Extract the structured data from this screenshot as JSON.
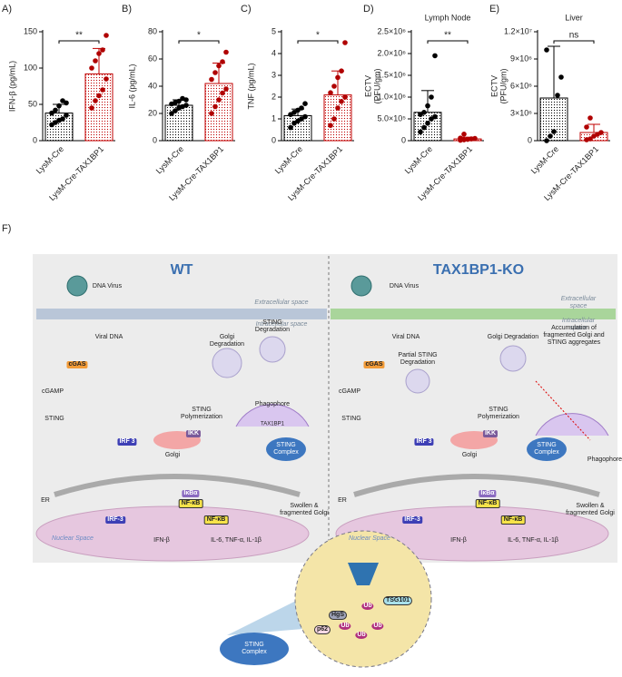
{
  "chart_data": [
    {
      "type": "bar",
      "label": "A)",
      "ylabel": [
        "IFN-β  (pg/mL)"
      ],
      "categories": [
        "LysM-Cre",
        "LysM-Cre-TAX1BP1"
      ],
      "colors": [
        "#000000",
        "#c00000"
      ],
      "values": [
        38,
        92
      ],
      "errors": [
        12,
        35
      ],
      "points": [
        [
          22,
          25,
          28,
          30,
          35,
          38,
          42,
          48,
          55,
          52
        ],
        [
          45,
          55,
          62,
          70,
          85,
          100,
          110,
          120,
          125,
          145
        ]
      ],
      "significance": "**",
      "ylim": [
        0,
        150
      ],
      "yticks": [
        0,
        50,
        100,
        150
      ]
    },
    {
      "type": "bar",
      "label": "B)",
      "ylabel": [
        "IL-6  (pg/mL)"
      ],
      "categories": [
        "LysM-Cre",
        "LysM-Cre-TAX1BP1"
      ],
      "colors": [
        "#000000",
        "#c00000"
      ],
      "values": [
        26,
        42
      ],
      "errors": [
        4,
        15
      ],
      "points": [
        [
          20,
          22,
          24,
          25,
          26,
          27,
          28,
          29,
          31,
          30
        ],
        [
          20,
          25,
          30,
          35,
          38,
          45,
          50,
          55,
          58,
          65
        ]
      ],
      "significance": "*",
      "ylim": [
        0,
        80
      ],
      "yticks": [
        0,
        20,
        40,
        60,
        80
      ]
    },
    {
      "type": "bar",
      "label": "C)",
      "ylabel": [
        "TNF  (pg/mL)"
      ],
      "categories": [
        "LysM-Cre",
        "LysM-Cre-TAX1BP1"
      ],
      "colors": [
        "#000000",
        "#c00000"
      ],
      "values": [
        1.15,
        2.1
      ],
      "errors": [
        0.3,
        1.1
      ],
      "points": [
        [
          0.6,
          0.8,
          0.9,
          1.0,
          1.1,
          1.2,
          1.3,
          1.4,
          1.5,
          1.7
        ],
        [
          0.7,
          1.0,
          1.5,
          1.8,
          2.0,
          2.2,
          2.5,
          2.9,
          3.2,
          4.5
        ]
      ],
      "significance": "*",
      "ylim": [
        0,
        5
      ],
      "yticks": [
        0,
        1,
        2,
        3,
        4,
        5
      ]
    },
    {
      "type": "bar",
      "label": "D)",
      "title": "Lymph Node",
      "ylabel": [
        "ECTV",
        "(PFU/gm)"
      ],
      "categories": [
        "LysM-Cre",
        "LysM-Cre-TAX1BP1"
      ],
      "colors": [
        "#000000",
        "#c00000"
      ],
      "values": [
        650000,
        40000
      ],
      "errors": [
        500000,
        40000
      ],
      "points": [
        [
          200000,
          300000,
          400000,
          500000,
          550000,
          600000,
          650000,
          800000,
          1000000,
          1950000
        ],
        [
          10000,
          20000,
          30000,
          40000,
          50000,
          60000,
          150000
        ]
      ],
      "significance": "**",
      "ylim": [
        0,
        2500000
      ],
      "yticks": [
        0,
        {
          "value": 500000,
          "label": "5.0×10⁵"
        },
        {
          "value": 1000000,
          "label": "1.0×10⁶"
        },
        {
          "value": 1500000,
          "label": "1.5×10⁶"
        },
        {
          "value": 2000000,
          "label": "2.0×10⁶"
        },
        {
          "value": 2500000,
          "label": "2.5×10⁶"
        }
      ]
    },
    {
      "type": "bar",
      "label": "E)",
      "title": "Liver",
      "ylabel": [
        "ECTV",
        "(PFU/gm)"
      ],
      "categories": [
        "LysM-Cre",
        "LysM-Cre-TAX1BP1"
      ],
      "colors": [
        "#000000",
        "#c00000"
      ],
      "values": [
        4700000,
        900000
      ],
      "errors": [
        5700000,
        900000
      ],
      "points": [
        [
          0,
          500000,
          1000000,
          5000000,
          7000000,
          10000000
        ],
        [
          100000,
          200000,
          500000,
          700000,
          900000,
          1500000,
          2500000
        ]
      ],
      "significance": "ns",
      "ylim": [
        0,
        12000000
      ],
      "yticks": [
        0,
        {
          "value": 3000000,
          "label": "3×10⁶"
        },
        {
          "value": 6000000,
          "label": "6×10⁶"
        },
        {
          "value": 9000000,
          "label": "9×10⁶"
        },
        {
          "value": 12000000,
          "label": "1.2×10⁷"
        }
      ]
    }
  ],
  "diagram": {
    "label": "F)",
    "wt": {
      "title": "WT",
      "virus": "DNA Virus",
      "extra": "Extracellular space",
      "intra": "Intracellular space",
      "viral_dna": "Viral DNA",
      "cgas": "cGAS",
      "cgamp": "cGAMP",
      "sting": "STING",
      "irf3": "IRF 3",
      "ikk": "IKK",
      "polymerization": "STING Polymerization",
      "golgi": "Golgi",
      "ikba": "IκBα",
      "nfkb": "NF-κB",
      "er": "ER",
      "nuclear": "Nuclear Space",
      "irf3_nuc": "IRF-3",
      "nfkb_nuc": "NF-κB",
      "ifn": "IFN-β",
      "cytokines": "IL-6, TNF-α, IL-1β",
      "golgi_deg": "Golgi Degradation",
      "sting_deg": "STING Degradation",
      "phagophore": "Phagophore",
      "complex": "STING Complex",
      "tax": "TAX1BP1",
      "swollen": "Swollen & fragmented Golgi"
    },
    "ko": {
      "title": "TAX1BP1-KO",
      "virus": "DNA Virus",
      "extra": "Extracellular space",
      "intra": "Intracellular space",
      "viral_dna": "Viral DNA",
      "cgas": "cGAS",
      "cgamp": "cGAMP",
      "sting": "STING",
      "irf3": "IRF 3",
      "ikk": "IKK",
      "polymerization": "STING Polymerization",
      "golgi": "Golgi",
      "ikba": "IκBα",
      "nfkb": "NF-κB",
      "er": "ER",
      "nuclear": "Nuclear Space",
      "irf3_nuc": "IRF-3",
      "nfkb_nuc": "NF-κB",
      "ifn": "IFN-β",
      "cytokines": "IL-6, TNF-α, IL-1β",
      "golgi_deg": "Golgi Degradation",
      "partial": "Partial STING Degradation",
      "accum": "Accumulation of fragmented Golgi and STING aggregates",
      "phagophore": "Phagophore",
      "complex": "STING Complex",
      "swollen": "Swollen & fragmented Golgi"
    },
    "inset": {
      "ub": [
        "Ub",
        "Ub",
        "Ub",
        "Ub"
      ],
      "tsg101": "TSG101",
      "hgs": "HgS",
      "p62": "p62",
      "complex": "STING Complex"
    }
  }
}
